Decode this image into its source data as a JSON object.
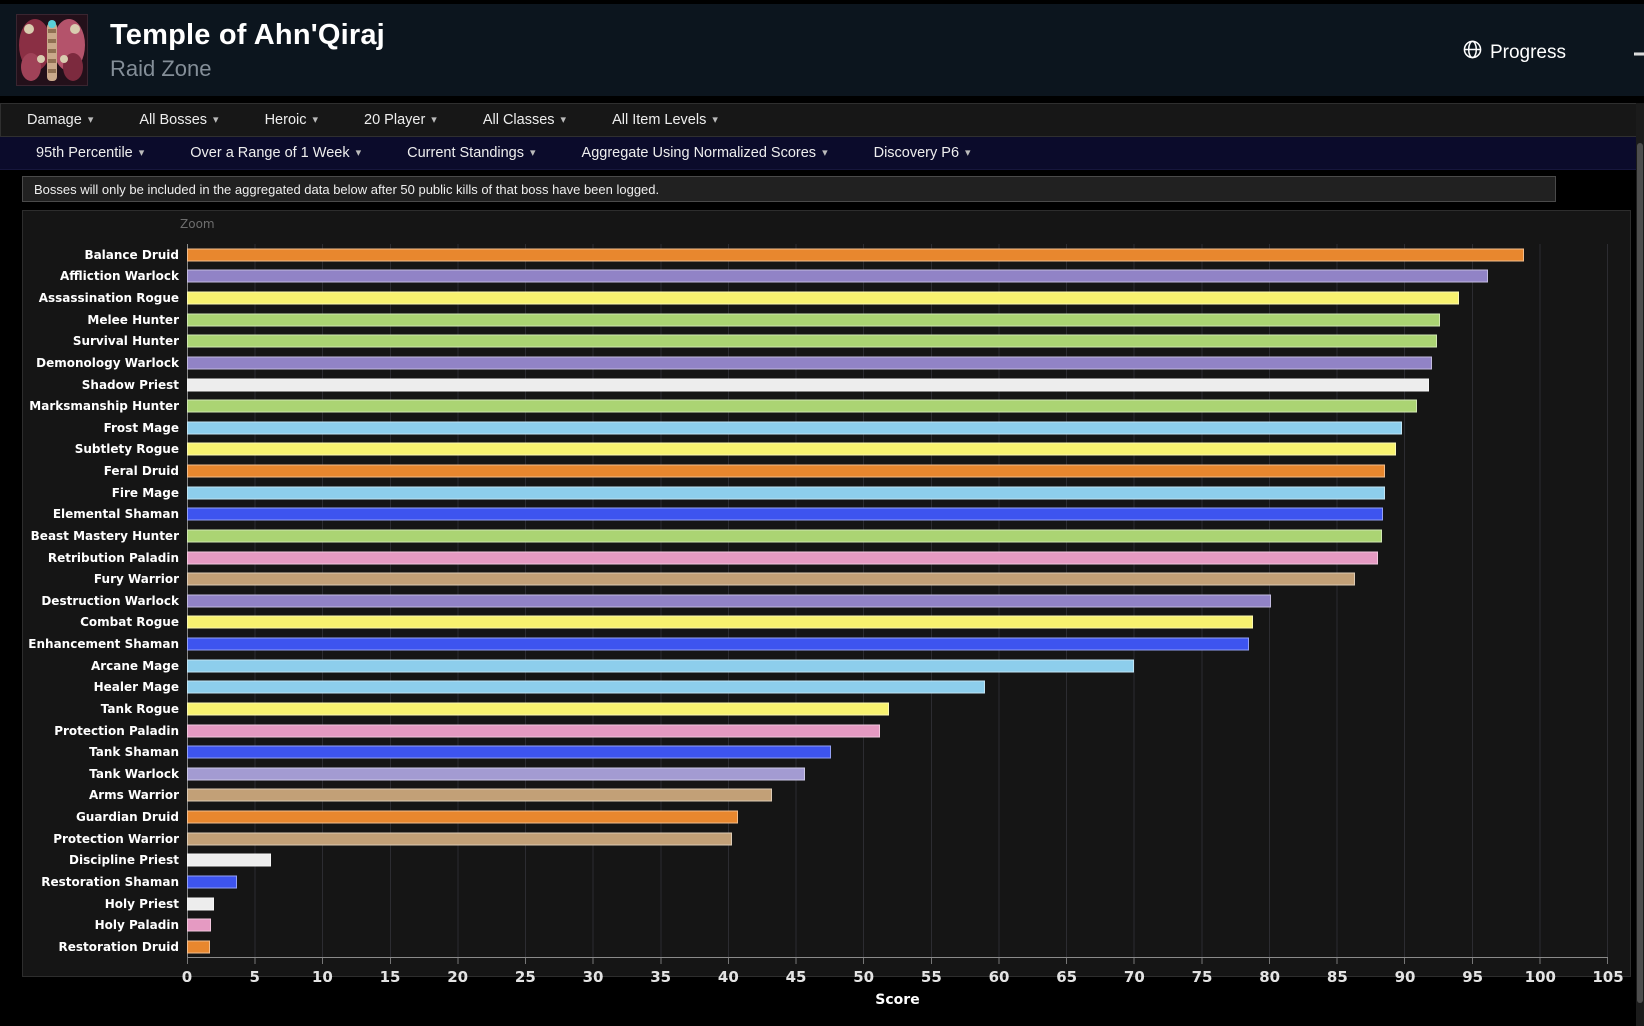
{
  "header": {
    "title": "Temple of Ahn'Qiraj",
    "subtitle": "Raid Zone",
    "progress_label": "Progress",
    "icons": [
      "raid-zone-logo",
      "globe-icon",
      "menu-icon"
    ]
  },
  "filters_primary": [
    {
      "label": "Damage"
    },
    {
      "label": "All Bosses"
    },
    {
      "label": "Heroic"
    },
    {
      "label": "20 Player"
    },
    {
      "label": "All Classes"
    },
    {
      "label": "All Item Levels"
    }
  ],
  "filters_secondary": [
    {
      "label": "95th Percentile"
    },
    {
      "label": "Over a Range of 1 Week"
    },
    {
      "label": "Current Standings"
    },
    {
      "label": "Aggregate Using Normalized Scores"
    },
    {
      "label": "Discovery P6"
    }
  ],
  "notice": "Bosses will only be included in the aggregated data below after 50 public kills of that boss have been logged.",
  "chart": {
    "zoom_label": "Zoom"
  },
  "class_colors": {
    "druid": "#E8872E",
    "warlock": "#9183C6",
    "rogue": "#F8F26F",
    "hunter": "#ABD473",
    "priest": "#EDEDED",
    "mage": "#8DCEEC",
    "shaman": "#3D54EF",
    "paladin": "#E59AC2",
    "warrior": "#C2A077",
    "tank_warlock": "#A39BD2"
  },
  "chart_data": {
    "type": "bar",
    "orientation": "horizontal",
    "title": "",
    "xlabel": "Score",
    "ylabel": "",
    "xlim": [
      0,
      105
    ],
    "x_ticks": [
      0,
      5,
      10,
      15,
      20,
      25,
      30,
      35,
      40,
      45,
      50,
      55,
      60,
      65,
      70,
      75,
      80,
      85,
      90,
      95,
      100,
      105
    ],
    "grid": true,
    "legend": false,
    "categories": [
      "Balance Druid",
      "Affliction Warlock",
      "Assassination Rogue",
      "Melee Hunter",
      "Survival Hunter",
      "Demonology Warlock",
      "Shadow Priest",
      "Marksmanship Hunter",
      "Frost Mage",
      "Subtlety Rogue",
      "Feral Druid",
      "Fire Mage",
      "Elemental Shaman",
      "Beast Mastery Hunter",
      "Retribution Paladin",
      "Fury Warrior",
      "Destruction Warlock",
      "Combat Rogue",
      "Enhancement Shaman",
      "Arcane Mage",
      "Healer Mage",
      "Tank Rogue",
      "Protection Paladin",
      "Tank Shaman",
      "Tank Warlock",
      "Arms Warrior",
      "Guardian Druid",
      "Protection Warrior",
      "Discipline Priest",
      "Restoration Shaman",
      "Holy Priest",
      "Holy Paladin",
      "Restoration Druid"
    ],
    "values": [
      98.8,
      96.1,
      94.0,
      92.6,
      92.4,
      92.0,
      91.8,
      90.9,
      89.8,
      89.3,
      88.5,
      88.5,
      88.4,
      88.3,
      88.0,
      86.3,
      80.1,
      78.8,
      78.5,
      70.0,
      59.0,
      51.9,
      51.2,
      47.6,
      45.7,
      43.2,
      40.7,
      40.3,
      6.2,
      3.7,
      2.0,
      1.8,
      1.7
    ],
    "bar_colors": [
      "#E8872E",
      "#9183C6",
      "#F8F26F",
      "#ABD473",
      "#ABD473",
      "#9183C6",
      "#EDEDED",
      "#ABD473",
      "#8DCEEC",
      "#F8F26F",
      "#E8872E",
      "#8DCEEC",
      "#3D54EF",
      "#ABD473",
      "#E59AC2",
      "#C2A077",
      "#9183C6",
      "#F8F26F",
      "#3D54EF",
      "#8DCEEC",
      "#8DCEEC",
      "#F8F26F",
      "#E59AC2",
      "#3D54EF",
      "#A39BD2",
      "#C2A077",
      "#E8872E",
      "#C2A077",
      "#EDEDED",
      "#3D54EF",
      "#EDEDED",
      "#E59AC2",
      "#E8872E"
    ]
  }
}
